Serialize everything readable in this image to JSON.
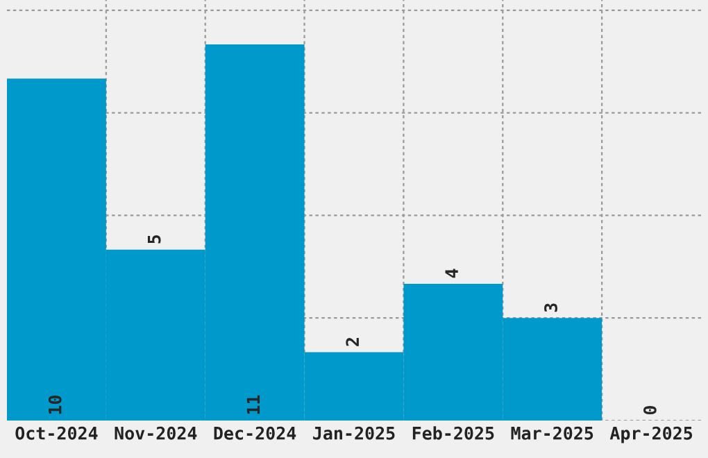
{
  "chart_data": {
    "type": "bar",
    "categories": [
      "Oct-2024",
      "Nov-2024",
      "Dec-2024",
      "Jan-2025",
      "Feb-2025",
      "Mar-2025",
      "Apr-2025"
    ],
    "values": [
      10,
      5,
      11,
      2,
      4,
      3,
      0
    ],
    "color": "#0099cc",
    "data_labels": true,
    "grid": true,
    "tick_labels": "x",
    "ylim": [
      0,
      12.3
    ],
    "yticks": [
      {
        "value": 0,
        "label": null
      },
      {
        "value": 3,
        "label": null
      },
      {
        "value": 6,
        "label": null
      },
      {
        "value": 9,
        "label": null
      },
      {
        "value": 12,
        "label": null
      }
    ]
  }
}
